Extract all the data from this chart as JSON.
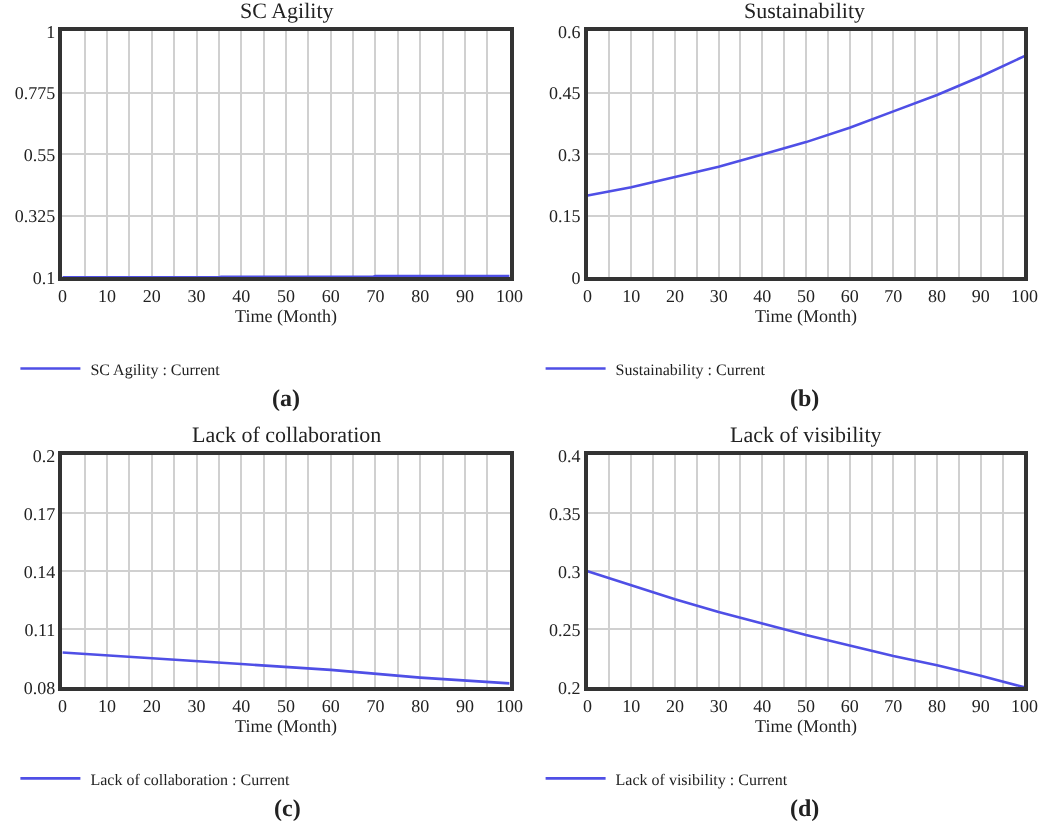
{
  "chart_data": [
    {
      "type": "line",
      "title": "SC Agility",
      "xlabel": "Time (Month)",
      "x": [
        0,
        35,
        35.5,
        69.5,
        70,
        100
      ],
      "series": [
        {
          "name": "SC Agility : Current",
          "color": "#4f4fe6",
          "values": [
            0.1,
            0.1,
            0.102,
            0.102,
            0.105,
            0.105
          ]
        }
      ],
      "xlim": [
        0,
        100
      ],
      "xticks": [
        0,
        {
          "value": 5,
          "label": null
        },
        10,
        {
          "value": 15,
          "label": null
        },
        20,
        {
          "value": 25,
          "label": null
        },
        30,
        {
          "value": 35,
          "label": null
        },
        40,
        {
          "value": 45,
          "label": null
        },
        50,
        {
          "value": 55,
          "label": null
        },
        60,
        {
          "value": 65,
          "label": null
        },
        70,
        {
          "value": 75,
          "label": null
        },
        80,
        {
          "value": 85,
          "label": null
        },
        90,
        {
          "value": 95,
          "label": null
        },
        100
      ],
      "ylim": [
        0.1,
        1
      ],
      "yticks": [
        0.1,
        0.325,
        0.55,
        0.775,
        1
      ],
      "grid": true,
      "legend": "bottom",
      "annotations": [
        "(a)"
      ]
    },
    {
      "type": "line",
      "title": "Sustainability",
      "xlabel": "Time (Month)",
      "x": [
        0,
        10,
        20,
        30,
        40,
        50,
        60,
        70,
        80,
        90,
        100
      ],
      "series": [
        {
          "name": "Sustainability : Current",
          "color": "#4f4fe6",
          "values": [
            0.2,
            0.22,
            0.245,
            0.27,
            0.3,
            0.33,
            0.365,
            0.405,
            0.445,
            0.49,
            0.54
          ]
        }
      ],
      "xlim": [
        0,
        100
      ],
      "xticks": [
        0,
        {
          "value": 5,
          "label": null
        },
        10,
        {
          "value": 15,
          "label": null
        },
        20,
        {
          "value": 25,
          "label": null
        },
        30,
        {
          "value": 35,
          "label": null
        },
        40,
        {
          "value": 45,
          "label": null
        },
        50,
        {
          "value": 55,
          "label": null
        },
        60,
        {
          "value": 65,
          "label": null
        },
        70,
        {
          "value": 75,
          "label": null
        },
        80,
        {
          "value": 85,
          "label": null
        },
        90,
        {
          "value": 95,
          "label": null
        },
        100
      ],
      "ylim": [
        0,
        0.6
      ],
      "yticks": [
        0,
        0.15,
        0.3,
        0.45,
        0.6
      ],
      "grid": true,
      "legend": "bottom",
      "annotations": [
        "(b)"
      ]
    },
    {
      "type": "line",
      "title": "Lack of collaboration",
      "xlabel": "Time (Month)",
      "x": [
        0,
        20,
        40,
        60,
        80,
        100
      ],
      "series": [
        {
          "name": "Lack of collaboration : Current",
          "color": "#4f4fe6",
          "values": [
            0.098,
            0.095,
            0.092,
            0.089,
            0.085,
            0.082
          ]
        }
      ],
      "xlim": [
        0,
        100
      ],
      "xticks": [
        0,
        {
          "value": 5,
          "label": null
        },
        10,
        {
          "value": 15,
          "label": null
        },
        20,
        {
          "value": 25,
          "label": null
        },
        30,
        {
          "value": 35,
          "label": null
        },
        40,
        {
          "value": 45,
          "label": null
        },
        50,
        {
          "value": 55,
          "label": null
        },
        60,
        {
          "value": 65,
          "label": null
        },
        70,
        {
          "value": 75,
          "label": null
        },
        80,
        {
          "value": 85,
          "label": null
        },
        90,
        {
          "value": 95,
          "label": null
        },
        100
      ],
      "ylim": [
        0.08,
        0.2
      ],
      "yticks": [
        0.08,
        0.11,
        0.14,
        0.17,
        0.2
      ],
      "grid": true,
      "legend": "bottom",
      "annotations": [
        "(c)"
      ]
    },
    {
      "type": "line",
      "title": "Lack of visibility",
      "xlabel": "Time (Month)",
      "x": [
        0,
        10,
        20,
        30,
        40,
        50,
        60,
        70,
        80,
        90,
        100
      ],
      "series": [
        {
          "name": "Lack of visibility : Current",
          "color": "#4f4fe6",
          "values": [
            0.3,
            0.288,
            0.276,
            0.265,
            0.255,
            0.245,
            0.236,
            0.227,
            0.219,
            0.21,
            0.2
          ]
        }
      ],
      "xlim": [
        0,
        100
      ],
      "xticks": [
        0,
        {
          "value": 5,
          "label": null
        },
        10,
        {
          "value": 15,
          "label": null
        },
        20,
        {
          "value": 25,
          "label": null
        },
        30,
        {
          "value": 35,
          "label": null
        },
        40,
        {
          "value": 45,
          "label": null
        },
        50,
        {
          "value": 55,
          "label": null
        },
        60,
        {
          "value": 65,
          "label": null
        },
        70,
        {
          "value": 75,
          "label": null
        },
        80,
        {
          "value": 85,
          "label": null
        },
        90,
        {
          "value": 95,
          "label": null
        },
        100
      ],
      "ylim": [
        0.2,
        0.4
      ],
      "yticks": [
        0.2,
        0.25,
        0.3,
        0.35,
        0.4
      ],
      "grid": true,
      "legend": "bottom",
      "annotations": [
        "(d)"
      ]
    }
  ]
}
